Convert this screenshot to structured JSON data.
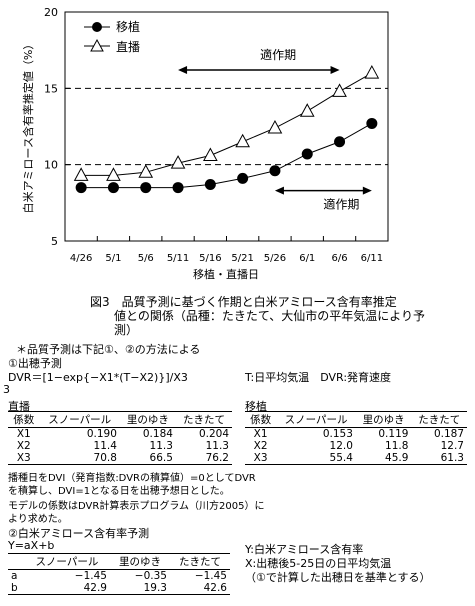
{
  "chart_data": {
    "type": "line",
    "ylabel": "白米アミロース含有率推定値（%）",
    "xlabel": "移植・直播日",
    "ylim": [
      5,
      20
    ],
    "yticks": [
      "5",
      "10",
      "15",
      "20"
    ],
    "categories": [
      "4/26",
      "5/1",
      "5/6",
      "5/11",
      "5/16",
      "5/21",
      "5/26",
      "6/1",
      "6/6",
      "6/11"
    ],
    "hlines": [
      10,
      15
    ],
    "series": [
      {
        "name": "移植",
        "marker": "filled-circle",
        "values": [
          8.5,
          8.5,
          8.5,
          8.5,
          8.7,
          9.1,
          9.6,
          10.7,
          11.5,
          12.7
        ]
      },
      {
        "name": "直播",
        "marker": "open-triangle",
        "values": [
          9.3,
          9.3,
          9.5,
          10.1,
          10.6,
          11.5,
          12.4,
          13.5,
          14.8,
          16.0
        ]
      }
    ],
    "annotations": [
      {
        "text": "適作期",
        "from": "5/11",
        "to": "6/6",
        "y": 16.2
      },
      {
        "text": "適作期",
        "from": "5/26",
        "to": "6/11",
        "y": 8.3
      }
    ],
    "legend": "top-left"
  },
  "caption": {
    "line1": "図3　品質予測に基づく作期と白米アミロース含有率推定",
    "line2": "値との関係（品種：たきたて、大仙市の平年気温により予",
    "line3": "測）"
  },
  "notes": {
    "n1": "＊品質予測は下記①、②の方法による",
    "n2": "①出穂予測",
    "formula1": "DVR＝[1−exp{−X1*(T−X2)}]/X3",
    "legend1": "T:日平均気温　DVR:発育速度",
    "num3": "3"
  },
  "table_direct": {
    "title": "直播",
    "headers": [
      "係数",
      "スノーパール",
      "里のゆき",
      "たきたて"
    ],
    "rows": [
      [
        "X1",
        "0.190",
        "0.184",
        "0.204"
      ],
      [
        "X2",
        "11.4",
        "11.3",
        "11.3"
      ],
      [
        "X3",
        "70.8",
        "66.5",
        "76.2"
      ]
    ]
  },
  "table_transplant": {
    "title": "移植",
    "headers": [
      "係数",
      "スノーパール",
      "里のゆき",
      "たきたて"
    ],
    "rows": [
      [
        "X1",
        "0.153",
        "0.119",
        "0.187"
      ],
      [
        "X2",
        "12.0",
        "11.8",
        "12.7"
      ],
      [
        "X3",
        "55.4",
        "45.9",
        "61.3"
      ]
    ]
  },
  "para": {
    "p1": "播種日をDVI（発育指数:DVRの積算値）=0としてDVR",
    "p2": "を積算し、DVI=1となる日を出穂予想日とした。",
    "p3": "モデルの係数はDVR計算表示プログラム（川方2005）に",
    "p4": "より求めた。"
  },
  "amylose": {
    "heading": "②白米アミロース含有率予測",
    "formula": "Y=aX+b",
    "headers": [
      "",
      "スノーパール",
      "里のゆき",
      "たきたて"
    ],
    "rows": [
      [
        "a",
        "−1.45",
        "−0.35",
        "−1.45"
      ],
      [
        "b",
        "42.9",
        "19.3",
        "42.6"
      ]
    ],
    "def1": "Y:白米アミロース含有率",
    "def2": "X:出穂後5-25日の日平均気温",
    "def3": "（①で計算した出穂日を基準とする）"
  }
}
